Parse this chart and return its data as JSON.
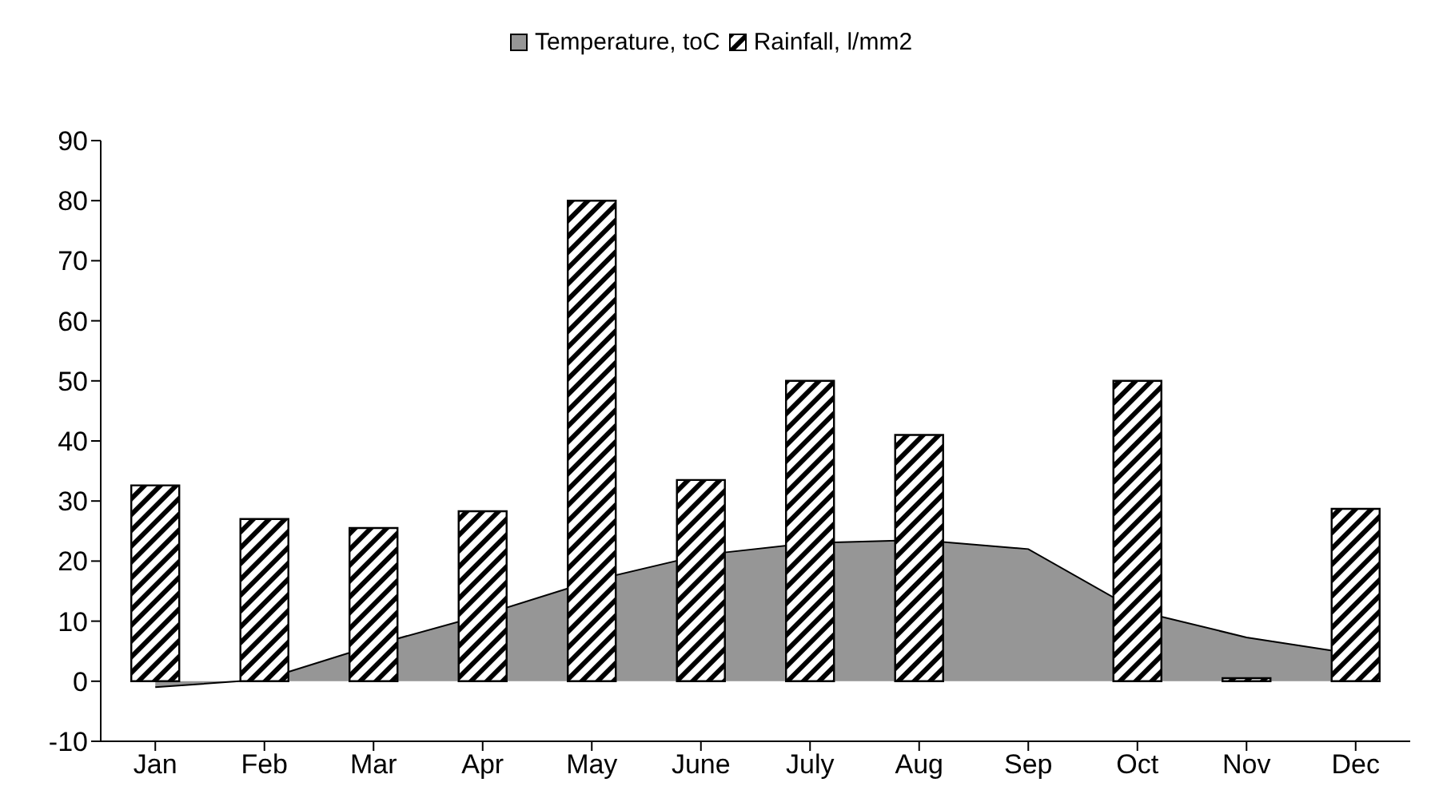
{
  "chart_data": {
    "type": "bar",
    "categories": [
      "Jan",
      "Feb",
      "Mar",
      "Apr",
      "May",
      "June",
      "July",
      "Aug",
      "Sep",
      "Oct",
      "Nov",
      "Dec"
    ],
    "series": [
      {
        "name": "Temperature, toC",
        "type": "area",
        "color": "#969696",
        "values": [
          -1,
          0.3,
          6,
          11,
          16.7,
          21,
          23,
          23.5,
          22,
          11.7,
          7.3,
          4.5
        ]
      },
      {
        "name": "Rainfall, l/mm2",
        "color": "#000000",
        "values": [
          32.6,
          27,
          25.5,
          28.3,
          80,
          33.5,
          50,
          41,
          null,
          50,
          0.5,
          28.7
        ]
      }
    ],
    "ylim": [
      -10,
      90
    ],
    "yticks": [
      -10,
      0,
      10,
      20,
      30,
      40,
      50,
      60,
      70,
      80,
      90
    ],
    "grid": false,
    "legend": "top"
  }
}
